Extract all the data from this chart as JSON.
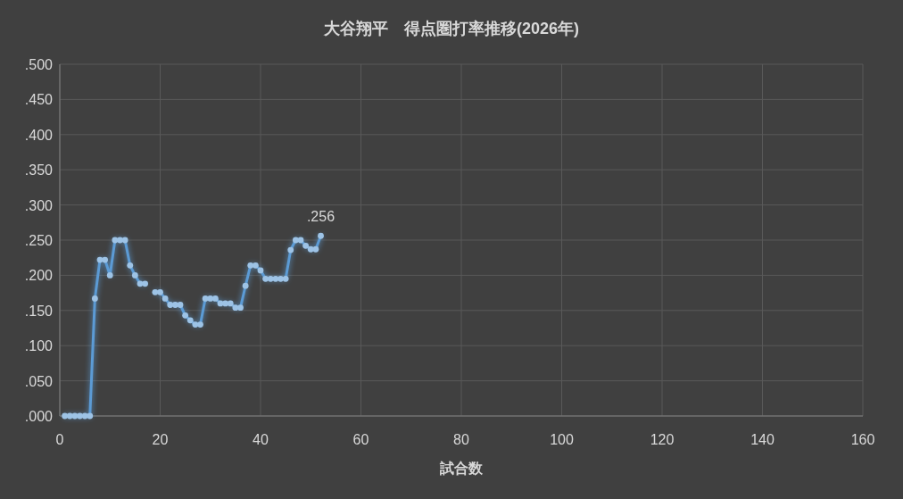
{
  "chart_data": {
    "type": "line",
    "title": "大谷翔平　得点圏打率推移(2026年)",
    "xlabel": "試合数",
    "x": [
      1,
      2,
      3,
      4,
      5,
      6,
      7,
      8,
      9,
      10,
      11,
      12,
      13,
      14,
      15,
      16,
      17,
      18,
      19,
      20,
      21,
      22,
      23,
      24,
      25,
      26,
      27,
      28,
      29,
      30,
      31,
      32,
      33,
      34,
      35,
      36,
      37,
      38,
      39,
      40,
      41,
      42,
      43,
      44,
      45,
      46,
      47,
      48,
      49,
      50,
      51,
      52
    ],
    "series": [
      {
        "color": "#5b9bd5",
        "values": [
          0,
          0,
          0,
          0,
          0,
          0,
          0.167,
          0.222,
          0.222,
          0.2,
          0.25,
          0.25,
          0.25,
          0.214,
          0.2,
          0.188,
          0.188,
          null,
          0.176,
          0.176,
          0.167,
          0.158,
          0.158,
          0.158,
          0.143,
          0.136,
          0.13,
          0.13,
          0.167,
          0.167,
          0.167,
          0.16,
          0.16,
          0.16,
          0.154,
          0.154,
          0.185,
          0.214,
          0.214,
          0.207,
          0.195,
          0.195,
          0.195,
          0.195,
          0.195,
          0.236,
          0.25,
          0.25,
          0.242,
          0.237,
          0.237,
          0.256
        ]
      }
    ],
    "annotations": [
      {
        "text": ".256",
        "x": 52,
        "y": 0.256
      }
    ],
    "xlim": [
      0,
      160
    ],
    "xticks": [
      0,
      20,
      40,
      60,
      80,
      100,
      120,
      140,
      160
    ],
    "ylim": [
      0,
      0.5
    ],
    "yticks": [
      {
        "value": 0,
        "label": ".000"
      },
      {
        "value": 0.05,
        "label": ".050"
      },
      {
        "value": 0.1,
        "label": ".100"
      },
      {
        "value": 0.15,
        "label": ".150"
      },
      {
        "value": 0.2,
        "label": ".200"
      },
      {
        "value": 0.25,
        "label": ".250"
      },
      {
        "value": 0.3,
        "label": ".300"
      },
      {
        "value": 0.35,
        "label": ".350"
      },
      {
        "value": 0.4,
        "label": ".400"
      },
      {
        "value": 0.45,
        "label": ".450"
      },
      {
        "value": 0.5,
        "label": ".500"
      }
    ],
    "grid": true,
    "marker": "circle",
    "line_style": "solid"
  }
}
